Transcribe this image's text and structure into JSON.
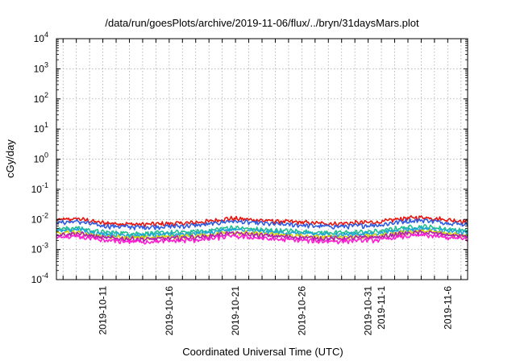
{
  "chart_data": {
    "type": "line",
    "title": "/data/run/goesPlots/archive/2019-11-06/flux/../bryn/31daysMars.plot",
    "xlabel": "Coordinated Universal Time (UTC)",
    "ylabel": "cGy/day",
    "y_scale": "log",
    "ylim_exp": [
      -4,
      4
    ],
    "y_tick_exponents": [
      -4,
      -3,
      -2,
      -1,
      0,
      1,
      2,
      3,
      4
    ],
    "y_tick_base": "10",
    "xlim": [
      "2019-10-07T12:00",
      "2019-11-07T12:00"
    ],
    "x_ticks": [
      {
        "date": "2019-10-11",
        "label": "2019-10-11"
      },
      {
        "date": "2019-10-16",
        "label": "2019-10-16"
      },
      {
        "date": "2019-10-21",
        "label": "2019-10-21"
      },
      {
        "date": "2019-10-26",
        "label": "2019-10-26"
      },
      {
        "date": "2019-10-31",
        "label": "2019-10-31"
      },
      {
        "date": "2019-11-01",
        "label": "2019-11-1"
      },
      {
        "date": "2019-11-06",
        "label": "2019-11-6"
      }
    ],
    "grid": true,
    "legend": "none",
    "series": [
      {
        "color": "#e8140e",
        "y_base": 0.0085,
        "y": [
          0.0095,
          0.0105,
          0.0078,
          0.0072,
          0.0068,
          0.0072,
          0.0075,
          0.0085,
          0.0108,
          0.0098,
          0.0088,
          0.0082,
          0.0075,
          0.0072,
          0.0078,
          0.0082,
          0.0108,
          0.0118,
          0.0098,
          0.0085
        ]
      },
      {
        "color": "#2f5be0",
        "y_base": 0.0068,
        "y": [
          0.0078,
          0.0085,
          0.0062,
          0.0058,
          0.0055,
          0.0058,
          0.0061,
          0.0068,
          0.0088,
          0.0078,
          0.007,
          0.0066,
          0.006,
          0.0058,
          0.0062,
          0.0066,
          0.0086,
          0.0094,
          0.0078,
          0.0068
        ]
      },
      {
        "color": "#1fbf8f",
        "y_base": 0.0042,
        "y": [
          0.0048,
          0.0052,
          0.0038,
          0.0036,
          0.0034,
          0.0036,
          0.0038,
          0.0042,
          0.0054,
          0.0048,
          0.0043,
          0.0041,
          0.0037,
          0.0036,
          0.0038,
          0.0041,
          0.0053,
          0.0058,
          0.0048,
          0.0042
        ]
      },
      {
        "color": "#1fa5d8",
        "y_base": 0.0036,
        "y": [
          0.0041,
          0.0045,
          0.0033,
          0.0031,
          0.0029,
          0.0031,
          0.0033,
          0.0036,
          0.0046,
          0.0041,
          0.0037,
          0.0035,
          0.0032,
          0.0031,
          0.0033,
          0.0035,
          0.0045,
          0.005,
          0.0041,
          0.0036
        ]
      },
      {
        "color": "#d4d400",
        "y_base": 0.003,
        "y": [
          0.0034,
          0.0037,
          0.0027,
          0.0026,
          0.0024,
          0.0026,
          0.0027,
          0.003,
          0.0038,
          0.0034,
          0.0031,
          0.0029,
          0.0026,
          0.0026,
          0.0027,
          0.0029,
          0.0037,
          0.0041,
          0.0034,
          0.003
        ]
      },
      {
        "color": "#b020b0",
        "y_base": 0.0027,
        "y": [
          0.0031,
          0.0034,
          0.0025,
          0.0023,
          0.0022,
          0.0023,
          0.0025,
          0.0027,
          0.0035,
          0.0031,
          0.0028,
          0.0026,
          0.0024,
          0.0023,
          0.0025,
          0.0026,
          0.0034,
          0.0037,
          0.0031,
          0.0027
        ]
      },
      {
        "color": "#ff1fd0",
        "y_base": 0.0022,
        "y": [
          0.0025,
          0.0027,
          0.002,
          0.0019,
          0.0018,
          0.0019,
          0.002,
          0.0022,
          0.0028,
          0.0025,
          0.0022,
          0.0021,
          0.0019,
          0.0019,
          0.002,
          0.0021,
          0.0027,
          0.003,
          0.0025,
          0.0022
        ]
      }
    ]
  }
}
